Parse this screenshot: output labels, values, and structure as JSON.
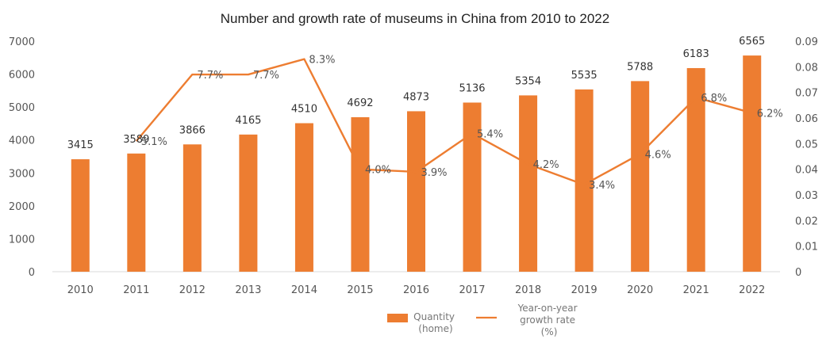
{
  "chart_data": {
    "type": "bar",
    "title": "Number and growth rate  of museums in China  from 2010 to 2022",
    "categories": [
      "2010",
      "2011",
      "2012",
      "2013",
      "2014",
      "2015",
      "2016",
      "2017",
      "2018",
      "2019",
      "2020",
      "2021",
      "2022"
    ],
    "series": [
      {
        "name": "Quantity (home)",
        "type": "bar",
        "axis": "left",
        "values": [
          3415,
          3589,
          3866,
          4165,
          4510,
          4692,
          4873,
          5136,
          5354,
          5535,
          5788,
          6183,
          6565
        ],
        "labels": [
          "3415",
          "3589",
          "3866",
          "4165",
          "4510",
          "4692",
          "4873",
          "5136",
          "5354",
          "5535",
          "5788",
          "6183",
          "6565"
        ]
      },
      {
        "name": "Year-on-year growth rate (%)",
        "type": "line",
        "axis": "right",
        "values": [
          null,
          0.051,
          0.077,
          0.077,
          0.083,
          0.04,
          0.039,
          0.054,
          0.042,
          0.034,
          0.046,
          0.068,
          0.062
        ],
        "labels": [
          "",
          "5.1%",
          "7.7%",
          "7.7%",
          "8.3%",
          "4.0%",
          "3.9%",
          "5.4%",
          "4.2%",
          "3.4%",
          "4.6%",
          "6.8%",
          "6.2%"
        ]
      }
    ],
    "ylim": [
      0,
      7000
    ],
    "y_ticks": [
      "0",
      "1000",
      "2000",
      "3000",
      "4000",
      "5000",
      "6000",
      "7000"
    ],
    "y2lim": [
      0,
      0.09
    ],
    "y2_ticks": [
      "0",
      "0.01",
      "0.02",
      "0.03",
      "0.04",
      "0.05",
      "0.06",
      "0.07",
      "0.08",
      "0.09"
    ],
    "legend": {
      "placement": "bottom-center",
      "bar_label_lines": [
        "Quantity",
        "(home)"
      ],
      "line_label_lines": [
        "Year-on-year",
        "growth rate",
        "(%)"
      ]
    },
    "colors": {
      "bar": "#ED7D31",
      "line": "#ED7D31"
    },
    "grid": false
  }
}
